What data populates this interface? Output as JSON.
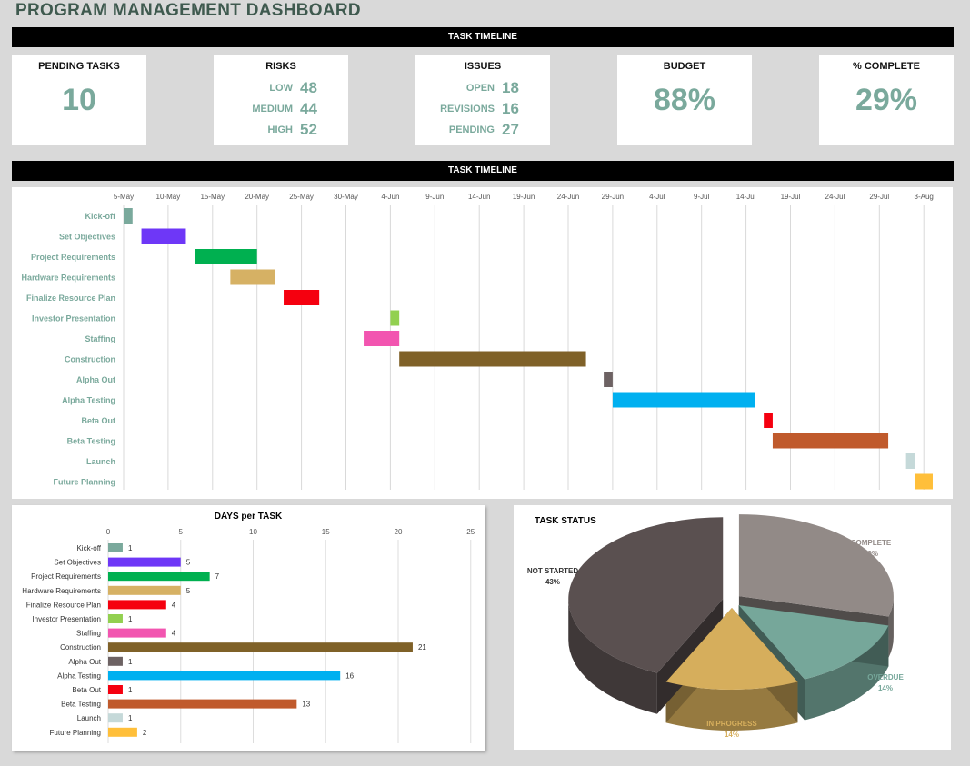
{
  "title": "PROGRAM MANAGEMENT DASHBOARD",
  "bar1": "TASK TIMELINE",
  "bar2": "TASK TIMELINE",
  "cards": {
    "pending": {
      "label": "PENDING TASKS",
      "value": "10"
    },
    "risks": {
      "label": "RISKS",
      "items": [
        {
          "k": "LOW",
          "v": "48"
        },
        {
          "k": "MEDIUM",
          "v": "44"
        },
        {
          "k": "HIGH",
          "v": "52"
        }
      ]
    },
    "issues": {
      "label": "ISSUES",
      "items": [
        {
          "k": "OPEN",
          "v": "18"
        },
        {
          "k": "REVISIONS",
          "v": "16"
        },
        {
          "k": "PENDING",
          "v": "27"
        }
      ]
    },
    "budget": {
      "label": "BUDGET",
      "value": "88%"
    },
    "complete": {
      "label": "% COMPLETE",
      "value": "29%"
    }
  },
  "chart_data": [
    {
      "type": "bar",
      "subtype": "gantt",
      "ticks": [
        "5-May",
        "10-May",
        "15-May",
        "20-May",
        "25-May",
        "30-May",
        "4-Jun",
        "9-Jun",
        "14-Jun",
        "19-Jun",
        "24-Jun",
        "29-Jun",
        "4-Jul",
        "9-Jul",
        "14-Jul",
        "19-Jul",
        "24-Jul",
        "29-Jul",
        "3-Aug"
      ],
      "tasks": [
        {
          "name": "Kick-off",
          "start": "5-May",
          "days": 1,
          "color": "#7aa99c"
        },
        {
          "name": "Set Objectives",
          "start": "7-May",
          "days": 5,
          "color": "#6e37f7"
        },
        {
          "name": "Project Requirements",
          "start": "13-May",
          "days": 7,
          "color": "#00b050"
        },
        {
          "name": "Hardware Requirements",
          "start": "17-May",
          "days": 5,
          "color": "#d6b164"
        },
        {
          "name": "Finalize Resource Plan",
          "start": "23-May",
          "days": 4,
          "color": "#f5000f"
        },
        {
          "name": "Investor Presentation",
          "start": "4-Jun",
          "days": 1,
          "color": "#92d050"
        },
        {
          "name": "Staffing",
          "start": "1-Jun",
          "days": 4,
          "color": "#f255b0"
        },
        {
          "name": "Construction",
          "start": "5-Jun",
          "days": 21,
          "color": "#7f6128"
        },
        {
          "name": "Alpha Out",
          "start": "28-Jun",
          "days": 1,
          "color": "#6d6263"
        },
        {
          "name": "Alpha Testing",
          "start": "29-Jun",
          "days": 16,
          "color": "#00b0f0"
        },
        {
          "name": "Beta Out",
          "start": "16-Jul",
          "days": 1,
          "color": "#f5000f"
        },
        {
          "name": "Beta Testing",
          "start": "17-Jul",
          "days": 13,
          "color": "#c05a2c"
        },
        {
          "name": "Launch",
          "start": "1-Aug",
          "days": 1,
          "color": "#c5d9d9"
        },
        {
          "name": "Future Planning",
          "start": "2-Aug",
          "days": 2,
          "color": "#ffbf3a"
        }
      ]
    },
    {
      "type": "bar",
      "orientation": "horizontal",
      "title": "DAYS per TASK",
      "xlim": [
        0,
        25
      ],
      "xticks": [
        0,
        5,
        10,
        15,
        20,
        25
      ],
      "grid": true,
      "categories": [
        "Kick-off",
        "Set Objectives",
        "Project Requirements",
        "Hardware Requirements",
        "Finalize Resource Plan",
        "Investor Presentation",
        "Staffing",
        "Construction",
        "Alpha Out",
        "Alpha Testing",
        "Beta Out",
        "Beta Testing",
        "Launch",
        "Future Planning"
      ],
      "values": [
        1,
        5,
        7,
        5,
        4,
        1,
        4,
        21,
        1,
        16,
        1,
        13,
        1,
        2
      ]
    },
    {
      "type": "pie",
      "title": "TASK STATUS",
      "style": "3d-exploded",
      "slices": [
        {
          "label": "COMPLETE",
          "value": 29,
          "text": "29%",
          "color": "#928a87",
          "labelColor": "#928a87"
        },
        {
          "label": "OVERDUE",
          "value": 14,
          "text": "14%",
          "color": "#76a79a",
          "labelColor": "#76a79a"
        },
        {
          "label": "IN PROGRESS",
          "value": 14,
          "text": "14%",
          "color": "#d6ae5c",
          "labelColor": "#d6ae5c"
        },
        {
          "label": "NOT STARTED",
          "value": 43,
          "text": "43%",
          "color": "#5a5050",
          "labelColor": "#333333"
        }
      ]
    }
  ]
}
